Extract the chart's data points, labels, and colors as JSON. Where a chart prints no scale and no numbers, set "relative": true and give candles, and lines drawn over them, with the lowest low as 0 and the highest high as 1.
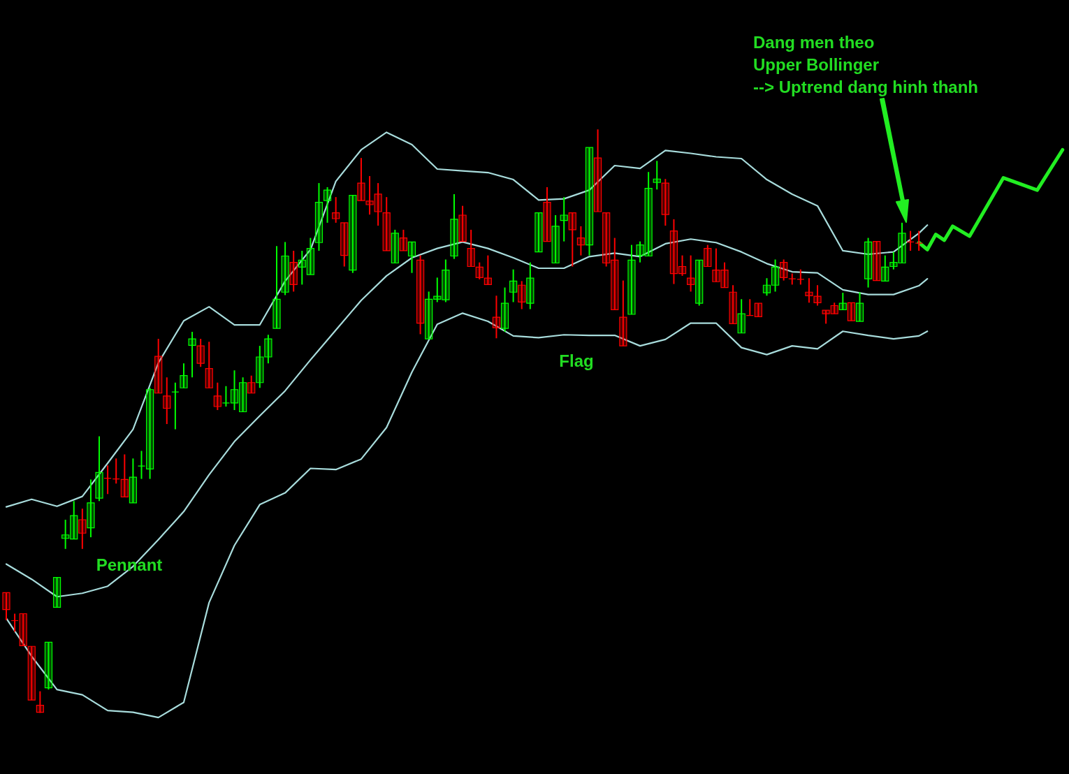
{
  "chart_data": {
    "type": "candlestick",
    "relative": true,
    "categories": [
      null,
      null,
      null,
      null,
      null,
      null,
      null,
      null,
      null,
      null,
      null,
      null,
      null,
      null,
      null,
      null,
      null,
      null,
      null,
      null,
      null,
      null,
      null,
      null,
      null,
      null,
      null,
      null,
      null,
      null,
      null,
      null,
      null,
      null,
      null,
      null,
      null,
      null,
      null,
      null,
      null,
      null,
      null,
      null,
      null,
      null,
      null,
      null,
      null,
      null,
      null,
      null,
      null,
      null,
      null,
      null,
      null,
      null,
      null,
      null,
      null,
      null,
      null,
      null,
      null,
      null,
      null,
      null,
      null,
      null,
      null,
      null,
      null,
      null,
      null,
      null,
      null,
      null,
      null,
      null,
      null,
      null,
      null,
      null,
      null,
      null,
      null,
      null,
      null,
      null,
      null,
      null,
      null,
      null,
      null,
      null,
      null,
      null,
      null,
      null,
      null,
      null,
      null,
      null,
      null,
      null,
      null,
      null,
      null,
      null,
      null,
      null,
      null,
      null,
      null,
      null,
      null,
      null,
      null,
      null,
      null,
      null,
      null,
      null,
      null,
      null
    ],
    "ohlc": [
      [
        0.206,
        0.206,
        0.159,
        0.177
      ],
      [
        0.158,
        0.17,
        0.139,
        0.158
      ],
      [
        0.17,
        0.17,
        0.115,
        0.115
      ],
      [
        0.114,
        0.114,
        0.022,
        0.022
      ],
      [
        0.013,
        0.037,
        0,
        0.001
      ],
      [
        0.043,
        0.121,
        0.04,
        0.121
      ],
      [
        0.181,
        0.232,
        0.181,
        0.232
      ],
      [
        0.299,
        0.331,
        0.281,
        0.305
      ],
      [
        0.298,
        0.363,
        0.298,
        0.338
      ],
      [
        0.331,
        0.35,
        0.281,
        0.308
      ],
      [
        0.317,
        0.4,
        0.301,
        0.36
      ],
      [
        0.368,
        0.474,
        0.363,
        0.412
      ],
      [
        0.402,
        0.424,
        0.375,
        0.402
      ],
      [
        0.401,
        0.436,
        0.393,
        0.401
      ],
      [
        0.4,
        0.443,
        0.37,
        0.37
      ],
      [
        0.36,
        0.436,
        0.36,
        0.404
      ],
      [
        0.423,
        0.449,
        0.401,
        0.423
      ],
      [
        0.418,
        0.557,
        0.401,
        0.554
      ],
      [
        0.611,
        0.641,
        0.548,
        0.548
      ],
      [
        0.543,
        0.575,
        0.495,
        0.522
      ],
      [
        0.55,
        0.566,
        0.486,
        0.55
      ],
      [
        0.557,
        0.599,
        0.557,
        0.578
      ],
      [
        0.63,
        0.653,
        0.575,
        0.641
      ],
      [
        0.629,
        0.641,
        0.593,
        0.599
      ],
      [
        0.59,
        0.636,
        0.557,
        0.557
      ],
      [
        0.543,
        0.566,
        0.519,
        0.525
      ],
      [
        0.531,
        0.56,
        0.525,
        0.531
      ],
      [
        0.531,
        0.587,
        0.519,
        0.554
      ],
      [
        0.516,
        0.575,
        0.516,
        0.566
      ],
      [
        0.566,
        0.578,
        0.548,
        0.548
      ],
      [
        0.566,
        0.629,
        0.557,
        0.61
      ],
      [
        0.61,
        0.648,
        0.599,
        0.641
      ],
      [
        0.659,
        0.8,
        0.659,
        0.709
      ],
      [
        0.721,
        0.807,
        0.716,
        0.783
      ],
      [
        0.772,
        0.792,
        0.722,
        0.734
      ],
      [
        0.764,
        0.792,
        0.734,
        0.776
      ],
      [
        0.751,
        0.814,
        0.751,
        0.796
      ],
      [
        0.806,
        0.908,
        0.792,
        0.875
      ],
      [
        0.878,
        0.901,
        0.84,
        0.896
      ],
      [
        0.857,
        0.884,
        0.84,
        0.847
      ],
      [
        0.84,
        0.84,
        0.765,
        0.784
      ],
      [
        0.759,
        0.887,
        0.754,
        0.887
      ],
      [
        0.908,
        0.951,
        0.878,
        0.878
      ],
      [
        0.877,
        0.92,
        0.854,
        0.871
      ],
      [
        0.889,
        0.908,
        0.835,
        0.859
      ],
      [
        0.857,
        0.884,
        0.792,
        0.792
      ],
      [
        0.771,
        0.828,
        0.771,
        0.822
      ],
      [
        0.814,
        0.828,
        0.792,
        0.792
      ],
      [
        0.783,
        0.807,
        0.754,
        0.807
      ],
      [
        0.776,
        0.784,
        0.649,
        0.668
      ],
      [
        0.641,
        0.722,
        0.641,
        0.709
      ],
      [
        0.709,
        0.746,
        0.704,
        0.714
      ],
      [
        0.708,
        0.777,
        0.704,
        0.759
      ],
      [
        0.783,
        0.889,
        0.778,
        0.846
      ],
      [
        0.853,
        0.869,
        0.808,
        0.808
      ],
      [
        0.796,
        0.828,
        0.765,
        0.765
      ],
      [
        0.764,
        0.772,
        0.743,
        0.746
      ],
      [
        0.745,
        0.784,
        0.734,
        0.734
      ],
      [
        0.678,
        0.715,
        0.642,
        0.66
      ],
      [
        0.659,
        0.729,
        0.653,
        0.702
      ],
      [
        0.721,
        0.76,
        0.704,
        0.74
      ],
      [
        0.733,
        0.74,
        0.692,
        0.704
      ],
      [
        0.702,
        0.772,
        0.692,
        0.745
      ],
      [
        0.79,
        0.857,
        0.79,
        0.857
      ],
      [
        0.875,
        0.901,
        0.808,
        0.808
      ],
      [
        0.771,
        0.853,
        0.771,
        0.834
      ],
      [
        0.844,
        0.884,
        0.808,
        0.853
      ],
      [
        0.857,
        0.857,
        0.765,
        0.828
      ],
      [
        0.814,
        0.834,
        0.784,
        0.802
      ],
      [
        0.802,
        0.969,
        0.784,
        0.969
      ],
      [
        0.951,
        1,
        0.859,
        0.859
      ],
      [
        0.857,
        0.857,
        0.765,
        0.771
      ],
      [
        0.776,
        0.814,
        0.691,
        0.691
      ],
      [
        0.678,
        0.741,
        0.629,
        0.629
      ],
      [
        0.683,
        0.802,
        0.683,
        0.776
      ],
      [
        0.784,
        0.808,
        0.772,
        0.802
      ],
      [
        0.783,
        0.927,
        0.783,
        0.899
      ],
      [
        0.909,
        0.946,
        0.897,
        0.915
      ],
      [
        0.908,
        0.915,
        0.835,
        0.854
      ],
      [
        0.826,
        0.846,
        0.735,
        0.753
      ],
      [
        0.765,
        0.784,
        0.749,
        0.753
      ],
      [
        0.745,
        0.784,
        0.722,
        0.734
      ],
      [
        0.702,
        0.776,
        0.698,
        0.776
      ],
      [
        0.796,
        0.802,
        0.765,
        0.765
      ],
      [
        0.759,
        0.796,
        0.739,
        0.739
      ],
      [
        0.759,
        0.772,
        0.729,
        0.729
      ],
      [
        0.721,
        0.733,
        0.667,
        0.667
      ],
      [
        0.651,
        0.709,
        0.651,
        0.684
      ],
      [
        0.681,
        0.709,
        0.681,
        0.681
      ],
      [
        0.702,
        0.702,
        0.679,
        0.679
      ],
      [
        0.72,
        0.745,
        0.715,
        0.733
      ],
      [
        0.733,
        0.777,
        0.722,
        0.764
      ],
      [
        0.772,
        0.777,
        0.741,
        0.746
      ],
      [
        0.744,
        0.753,
        0.734,
        0.744
      ],
      [
        0.743,
        0.76,
        0.734,
        0.743
      ],
      [
        0.721,
        0.745,
        0.703,
        0.715
      ],
      [
        0.714,
        0.733,
        0.698,
        0.703
      ],
      [
        0.69,
        0.69,
        0.667,
        0.684
      ],
      [
        0.698,
        0.703,
        0.684,
        0.684
      ],
      [
        0.691,
        0.72,
        0.691,
        0.702
      ],
      [
        0.703,
        0.703,
        0.672,
        0.672
      ],
      [
        0.671,
        0.721,
        0.671,
        0.702
      ],
      [
        0.744,
        0.814,
        0.729,
        0.807
      ],
      [
        0.808,
        0.808,
        0.741,
        0.741
      ],
      [
        0.74,
        0.784,
        0.74,
        0.764
      ],
      [
        0.765,
        0.79,
        0.76,
        0.772
      ],
      [
        0.771,
        0.84,
        0.771,
        0.822
      ],
      [
        0.807,
        0.826,
        0.792,
        0.807
      ],
      [
        0.805,
        0.826,
        0.792,
        0.805
      ],
      null,
      null,
      null,
      null,
      null,
      null,
      null,
      null,
      null,
      null,
      null,
      null,
      null,
      null,
      null,
      null,
      null
    ],
    "colors": [
      "#ff0000",
      "#ff0000",
      "#ff0000",
      "#ff0000",
      "#ff0000",
      "#00ff00",
      "#00ff00",
      "#00ff00",
      "#00ff00",
      "#ff0000",
      "#00ff00",
      "#00ff00",
      "#ff0000",
      "#ff0000",
      "#ff0000",
      "#00ff00",
      "#00ff00",
      "#00ff00",
      "#ff0000",
      "#ff0000",
      "#00ff00",
      "#00ff00",
      "#00ff00",
      "#ff0000",
      "#ff0000",
      "#ff0000",
      "#00ff00",
      "#00ff00",
      "#00ff00",
      "#ff0000",
      "#00ff00",
      "#00ff00",
      "#00ff00",
      "#00ff00",
      "#ff0000",
      "#00ff00",
      "#00ff00",
      "#00ff00",
      "#00ff00",
      "#ff0000",
      "#ff0000",
      "#00ff00",
      "#ff0000",
      "#ff0000",
      "#ff0000",
      "#ff0000",
      "#00ff00",
      "#ff0000",
      "#00ff00",
      "#ff0000",
      "#00ff00",
      "#00ff00",
      "#00ff00",
      "#00ff00",
      "#ff0000",
      "#ff0000",
      "#ff0000",
      "#ff0000",
      "#ff0000",
      "#00ff00",
      "#00ff00",
      "#ff0000",
      "#00ff00",
      "#00ff00",
      "#ff0000",
      "#00ff00",
      "#00ff00",
      "#ff0000",
      "#ff0000",
      "#00ff00",
      "#ff0000",
      "#ff0000",
      "#ff0000",
      "#ff0000",
      "#00ff00",
      "#00ff00",
      "#00ff00",
      "#00ff00",
      "#ff0000",
      "#ff0000",
      "#ff0000",
      "#ff0000",
      "#00ff00",
      "#ff0000",
      "#ff0000",
      "#ff0000",
      "#ff0000",
      "#00ff00",
      "#ff0000",
      "#ff0000",
      "#00ff00",
      "#00ff00",
      "#ff0000",
      "#ff0000",
      "#ff0000",
      "#ff0000",
      "#ff0000",
      "#ff0000",
      "#ff0000",
      "#00ff00",
      "#ff0000",
      "#00ff00",
      "#00ff00",
      "#ff0000",
      "#00ff00",
      "#00ff00",
      "#00ff00",
      "#ff0000",
      "#ff0000",
      null,
      null,
      null,
      null,
      null,
      null,
      null,
      null,
      null,
      null,
      null,
      null,
      null,
      null,
      null,
      null,
      null
    ],
    "series": [
      {
        "type": "line",
        "color": "#a8dcdc",
        "values": [
          0.353,
          null,
          null,
          0.366,
          null,
          null,
          0.354,
          null,
          null,
          0.371,
          null,
          null,
          0.428,
          null,
          null,
          0.486,
          null,
          null,
          0.6,
          null,
          null,
          0.672,
          null,
          null,
          0.696,
          null,
          null,
          0.665,
          null,
          null,
          0.665,
          null,
          null,
          0.74,
          null,
          null,
          0.794,
          null,
          null,
          0.911,
          null,
          null,
          0.965,
          null,
          null,
          0.995,
          null,
          null,
          0.974,
          null,
          null,
          0.932,
          null,
          null,
          0.929,
          null,
          null,
          0.926,
          null,
          null,
          0.914,
          null,
          null,
          0.879,
          null,
          null,
          0.881,
          null,
          null,
          0.896,
          null,
          null,
          0.938,
          null,
          null,
          0.933,
          null,
          null,
          0.964,
          null,
          null,
          0.959,
          null,
          null,
          0.953,
          null,
          null,
          0.95,
          null,
          null,
          0.914,
          null,
          null,
          0.889,
          null,
          null,
          0.869,
          null,
          null,
          0.792,
          null,
          null,
          0.786,
          null,
          null,
          0.79,
          null,
          null,
          0.822,
          0.836,
          null,
          null,
          null,
          null,
          null,
          null,
          null,
          null,
          null,
          null,
          null,
          null,
          null,
          null,
          null,
          null
        ]
      },
      {
        "type": "line",
        "color": "#a8dcdc",
        "values": [
          0.255,
          null,
          null,
          0.229,
          null,
          null,
          0.199,
          null,
          null,
          0.205,
          null,
          null,
          0.217,
          null,
          null,
          0.251,
          null,
          null,
          0.297,
          null,
          null,
          0.345,
          null,
          null,
          0.408,
          null,
          null,
          0.465,
          null,
          null,
          0.509,
          null,
          null,
          0.552,
          null,
          null,
          0.605,
          null,
          null,
          0.656,
          null,
          null,
          0.707,
          null,
          null,
          0.749,
          null,
          null,
          0.78,
          null,
          null,
          0.796,
          null,
          null,
          0.807,
          null,
          null,
          0.796,
          null,
          null,
          0.78,
          null,
          null,
          0.762,
          null,
          null,
          0.762,
          null,
          null,
          0.782,
          null,
          null,
          0.788,
          null,
          null,
          0.782,
          null,
          null,
          0.804,
          null,
          null,
          0.812,
          null,
          null,
          0.806,
          null,
          null,
          0.79,
          null,
          null,
          0.77,
          null,
          null,
          0.756,
          null,
          null,
          0.754,
          null,
          null,
          0.725,
          null,
          null,
          0.717,
          null,
          null,
          0.717,
          null,
          null,
          0.732,
          0.744,
          null,
          null,
          null,
          null,
          null,
          null,
          null,
          null,
          null,
          null,
          null,
          null,
          null,
          null,
          null,
          null
        ]
      },
      {
        "type": "line",
        "color": "#a8dcdc",
        "values": [
          0.162,
          null,
          null,
          0.097,
          null,
          null,
          0.04,
          null,
          null,
          0.031,
          null,
          null,
          0.004,
          null,
          null,
          0.001,
          null,
          null,
          -0.008,
          null,
          null,
          0.018,
          null,
          null,
          0.189,
          null,
          null,
          0.287,
          null,
          null,
          0.357,
          null,
          null,
          0.377,
          null,
          null,
          0.419,
          null,
          null,
          0.417,
          null,
          null,
          0.435,
          null,
          null,
          0.489,
          null,
          null,
          0.584,
          null,
          null,
          0.666,
          null,
          null,
          0.685,
          null,
          null,
          0.671,
          null,
          null,
          0.646,
          null,
          null,
          0.643,
          null,
          null,
          0.648,
          null,
          null,
          0.647,
          null,
          null,
          0.647,
          null,
          null,
          0.629,
          null,
          null,
          0.64,
          null,
          null,
          0.668,
          null,
          null,
          0.668,
          null,
          null,
          0.626,
          null,
          null,
          0.614,
          null,
          null,
          0.629,
          null,
          null,
          0.624,
          null,
          null,
          0.654,
          null,
          null,
          0.647,
          null,
          null,
          0.641,
          null,
          null,
          0.646,
          0.654,
          null,
          null,
          null,
          null,
          null,
          null,
          null,
          null,
          null,
          null,
          null,
          null,
          null,
          null,
          null,
          null
        ]
      },
      {
        "type": "line",
        "color": "#22ee22",
        "values": [
          null,
          null,
          null,
          null,
          null,
          null,
          null,
          null,
          null,
          null,
          null,
          null,
          null,
          null,
          null,
          null,
          null,
          null,
          null,
          null,
          null,
          null,
          null,
          null,
          null,
          null,
          null,
          null,
          null,
          null,
          null,
          null,
          null,
          null,
          null,
          null,
          null,
          null,
          null,
          null,
          null,
          null,
          null,
          null,
          null,
          null,
          null,
          null,
          null,
          null,
          null,
          null,
          null,
          null,
          null,
          null,
          null,
          null,
          null,
          null,
          null,
          null,
          null,
          null,
          null,
          null,
          null,
          null,
          null,
          null,
          null,
          null,
          null,
          null,
          null,
          null,
          null,
          null,
          null,
          null,
          null,
          null,
          null,
          null,
          null,
          null,
          null,
          null,
          null,
          null,
          null,
          null,
          null,
          null,
          null,
          null,
          null,
          null,
          null,
          null,
          null,
          null,
          null,
          null,
          null,
          null,
          null,
          null,
          0.806,
          0.794,
          0.82,
          0.81,
          0.834,
          null,
          0.817,
          null,
          null,
          null,
          0.917,
          null,
          null,
          null,
          0.896,
          null,
          null,
          0.965
        ]
      }
    ],
    "annotations": [
      "Dang men theo\nUpper Bollinger\n--> Uptrend dang hinh thanh",
      "Pennant",
      "Flag"
    ]
  }
}
